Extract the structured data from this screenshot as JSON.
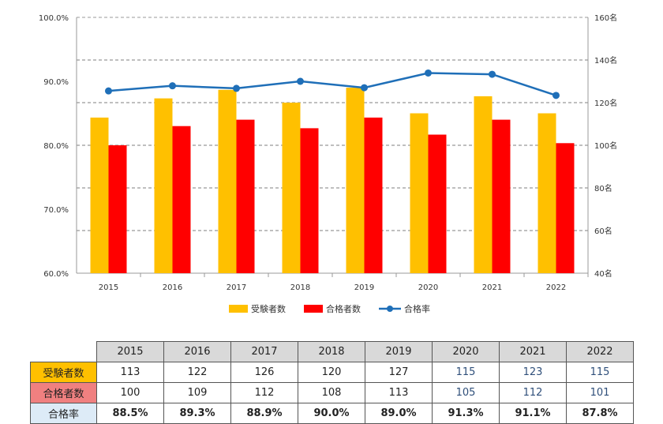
{
  "chart_data": {
    "type": "bar",
    "categories": [
      "2015",
      "2016",
      "2017",
      "2018",
      "2019",
      "2020",
      "2021",
      "2022"
    ],
    "series": [
      {
        "name": "受験者数",
        "type": "bar",
        "axis": "right",
        "color": "#FFC000",
        "values": [
          113,
          122,
          126,
          120,
          127,
          115,
          123,
          115
        ]
      },
      {
        "name": "合格者数",
        "type": "bar",
        "axis": "right",
        "color": "#FF0000",
        "values": [
          100,
          109,
          112,
          108,
          113,
          105,
          112,
          101
        ]
      },
      {
        "name": "合格率",
        "type": "line",
        "axis": "left",
        "color": "#1F6FB8",
        "values": [
          88.5,
          89.3,
          88.9,
          90.0,
          89.0,
          91.3,
          91.1,
          87.8
        ]
      }
    ],
    "left_axis": {
      "min": 60,
      "max": 100,
      "ticks": [
        "60.0%",
        "70.0%",
        "80.0%",
        "90.0%",
        "100.0%"
      ]
    },
    "right_axis": {
      "min": 40,
      "max": 160,
      "ticks": [
        "40名",
        "60名",
        "80名",
        "100名",
        "120名",
        "140名",
        "160名"
      ]
    },
    "grid": "dashed horizontal",
    "legend_position": "bottom"
  },
  "table": {
    "years": [
      "2015",
      "2016",
      "2017",
      "2018",
      "2019",
      "2020",
      "2021",
      "2022"
    ],
    "rows": [
      {
        "label": "受験者数",
        "bg": "#FFC000",
        "values": [
          "113",
          "122",
          "126",
          "120",
          "127",
          "115",
          "123",
          "115"
        ]
      },
      {
        "label": "合格者数",
        "bg": "#F08080",
        "values": [
          "100",
          "109",
          "112",
          "108",
          "113",
          "105",
          "112",
          "101"
        ]
      },
      {
        "label": "合格率",
        "bg": "#DDEBF7",
        "values": [
          "88.5%",
          "89.3%",
          "88.9%",
          "90.0%",
          "89.0%",
          "91.3%",
          "91.1%",
          "87.8%"
        ]
      }
    ]
  }
}
